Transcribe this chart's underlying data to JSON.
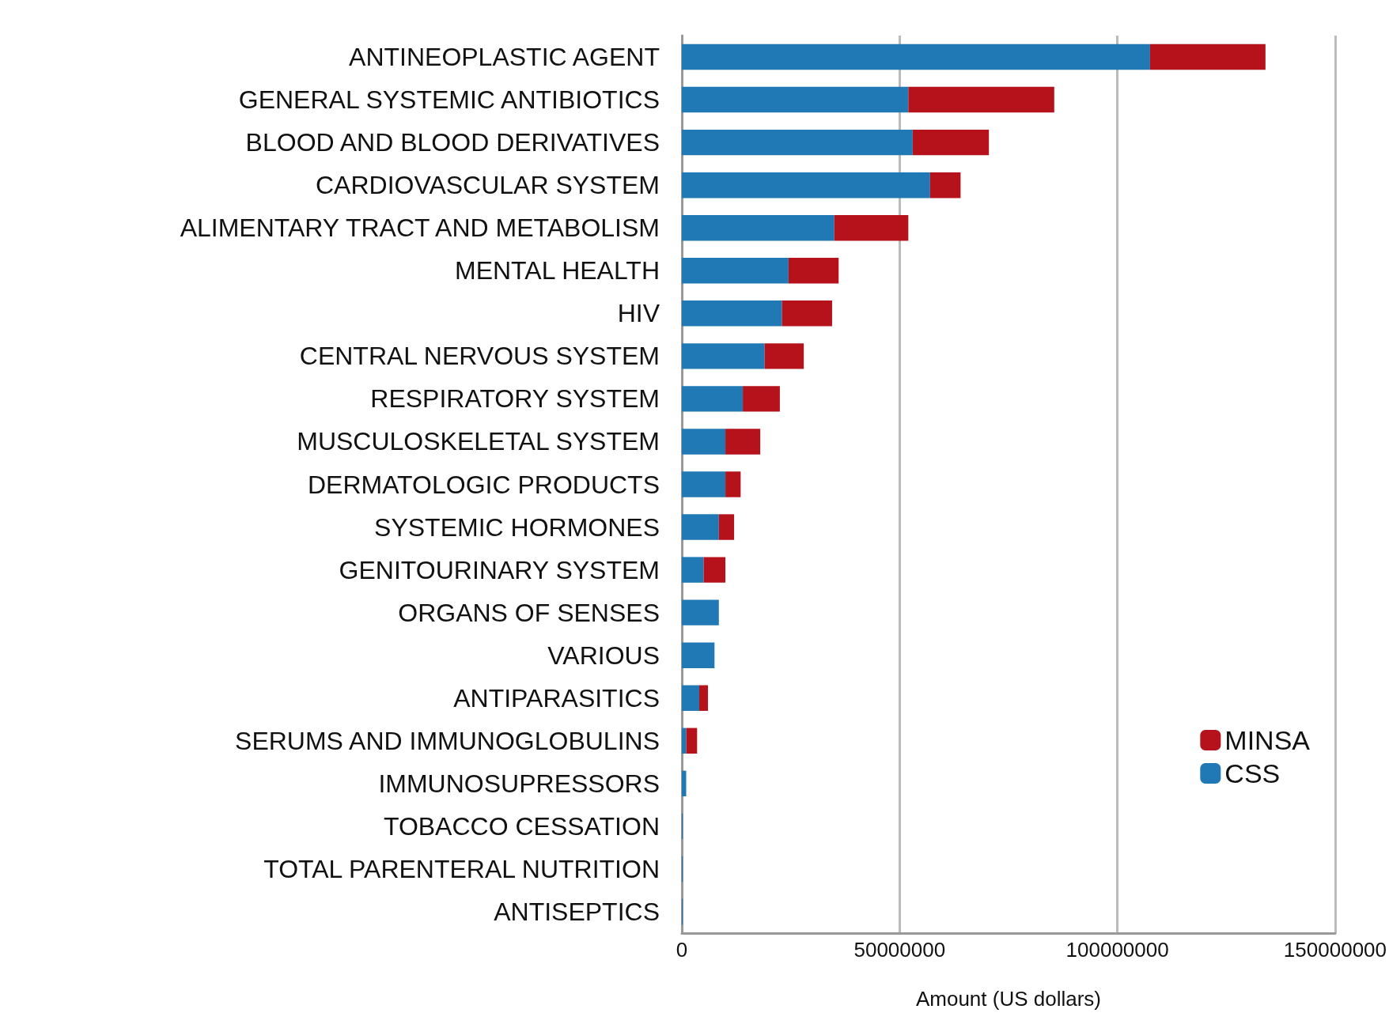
{
  "chart_data": {
    "type": "bar",
    "orientation": "horizontal",
    "stacked": true,
    "xlabel": "Amount (US dollars)",
    "categories": [
      "ANTINEOPLASTIC AGENT",
      "GENERAL SYSTEMIC ANTIBIOTICS",
      "BLOOD AND BLOOD DERIVATIVES",
      "CARDIOVASCULAR SYSTEM",
      "ALIMENTARY TRACT AND METABOLISM",
      "MENTAL HEALTH",
      "HIV",
      "CENTRAL NERVOUS SYSTEM",
      "RESPIRATORY SYSTEM",
      "MUSCULOSKELETAL SYSTEM",
      "DERMATOLOGIC PRODUCTS",
      "SYSTEMIC HORMONES",
      "GENITOURINARY SYSTEM",
      "ORGANS OF SENSES",
      "VARIOUS",
      "ANTIPARASITICS",
      "SERUMS AND IMMUNOGLOBULINS",
      "IMMUNOSUPRESSORS",
      "TOBACCO CESSATION",
      "TOTAL PARENTERAL NUTRITION",
      "ANTISEPTICS"
    ],
    "series": [
      {
        "name": "CSS",
        "color": "#2079b4",
        "values": [
          107500000,
          52000000,
          53000000,
          57000000,
          35000000,
          24500000,
          23000000,
          19000000,
          14000000,
          10000000,
          10000000,
          8500000,
          5000000,
          8500000,
          7500000,
          4000000,
          1000000,
          1000000,
          200000,
          200000,
          200000
        ]
      },
      {
        "name": "MINSA",
        "color": "#b5121b",
        "values": [
          26500000,
          33500000,
          17500000,
          7000000,
          17000000,
          11500000,
          11500000,
          9000000,
          8500000,
          8000000,
          3500000,
          3500000,
          5000000,
          0,
          0,
          2000000,
          2500000,
          0,
          0,
          0,
          0
        ]
      }
    ],
    "xlim": [
      0,
      150000000
    ],
    "xticks": [
      0,
      50000000,
      100000000,
      150000000
    ],
    "grid": "x",
    "legend": "bottom right"
  }
}
